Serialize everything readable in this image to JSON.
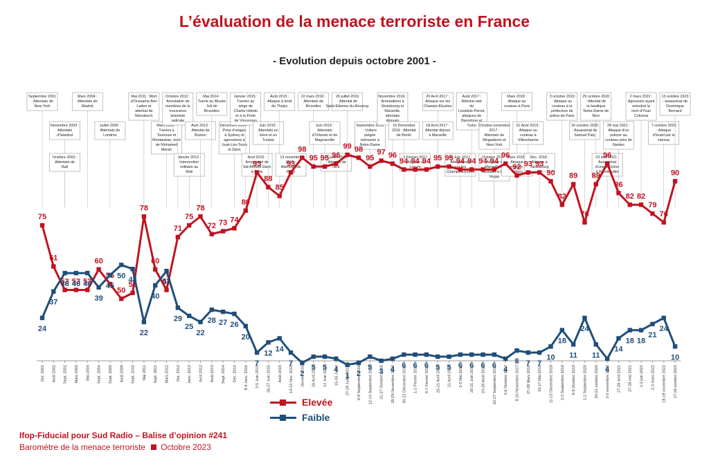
{
  "title": "L’évaluation de la menace terroriste en France",
  "subtitle": "- Evolution depuis octobre 2001 -",
  "footer": {
    "line1": "Ifop-Fiducial pour Sud Radio – Balise d’opinion #241",
    "line2a": "Baromètre de la menace terroriste",
    "line2b": "Octobre 2023"
  },
  "colors": {
    "elevee": "#c1121f",
    "faible": "#1f4e79"
  },
  "chart_data": {
    "type": "line",
    "categories": [
      "Oct. 2001",
      "Août 2002",
      "Sept. 2002",
      "Mars 2003",
      "Mai 2004",
      "Sept. 2004",
      "Sept. 2005",
      "Août 2008",
      "Sept. 2010",
      "Mai 2011",
      "Sept. 2011",
      "Mars 2012",
      "Oct. 2012",
      "Janv. 2013",
      "Avril 2013",
      "Août 2013",
      "Sept. 2014",
      "Déc. 2014",
      "8-9 Janv. 2015",
      "3-5 Juin 2015",
      "26-27 Juin 2015",
      "Août 2015",
      "14-15 Nov. 2015",
      "Janvier 2016",
      "18 Avril 2016",
      "14 Juin 2016",
      "15-16 Juillet",
      "27-29 Juillet 2016",
      "6-9 Septembre 2016",
      "12-14 Septembre 2016",
      "21-27 Octobre 2016",
      "28-29 Novembre 2016",
      "20-22 Décembre 2016",
      "1-2 Février 2017",
      "6-7 Février 2017",
      "20-21 Avril 2017",
      "21 Avril 2017",
      "2-5 Mai 2017",
      "20-21 Juin 2017",
      "24-28 Août 2017",
      "20-27 Septembre 2017",
      "3-6 Octobre 2017",
      "9-10 Novembre 2017",
      "27-28 Mars 2018",
      "16-17 Mai 2018",
      "11-13 Décembre 2018",
      "2-3 Septembre 2019",
      "8-9 Octobre 2019",
      "1-2 Septembre 2020",
      "20-21 octobre 2020",
      "3-5 novembre 2020",
      "27-28 avril 2021",
      "27-28 mai 2021",
      "1-2 juin 2021",
      "2-3 mars 2022",
      "18-19 novembre 2022",
      "17-18 octobre 2023"
    ],
    "series": [
      {
        "name": "Elevée",
        "values": [
          75,
          61,
          53,
          53,
          53,
          60,
          55,
          50,
          52,
          78,
          60,
          53,
          71,
          75,
          78,
          72,
          73,
          74,
          80,
          93,
          88,
          85,
          93,
          98,
          95,
          95,
          96,
          99,
          98,
          95,
          97,
          96,
          94,
          94,
          94,
          95,
          95,
          94,
          94,
          94,
          94,
          96,
          92,
          93,
          93,
          90,
          82,
          89,
          76,
          89,
          96,
          86,
          82,
          82,
          79,
          76,
          90
        ]
      },
      {
        "name": "Faible",
        "values": [
          24,
          37,
          46,
          46,
          46,
          39,
          45,
          50,
          48,
          22,
          40,
          47,
          29,
          25,
          22,
          28,
          27,
          26,
          20,
          7,
          12,
          14,
          7,
          2,
          5,
          5,
          4,
          1,
          2,
          5,
          3,
          4,
          6,
          6,
          6,
          5,
          5,
          6,
          6,
          6,
          6,
          4,
          8,
          7,
          7,
          10,
          18,
          11,
          24,
          11,
          4,
          14,
          18,
          18,
          21,
          24,
          10
        ]
      }
    ],
    "xlabel": "",
    "ylabel": "",
    "ylim": [
      0,
      100
    ],
    "legend": [
      "Elevée",
      "Faible"
    ],
    "annotations": [
      {
        "text": "Septembre 2001 : Attentats de New-York",
        "at": 0
      },
      {
        "text": "Novembre 2003 : Attentats d'Istanbul",
        "at": 2
      },
      {
        "text": "Octobre 2002 : Attentats de Bali",
        "at": 2
      },
      {
        "text": "Mars 2004 : Attentats de Madrid",
        "at": 4
      },
      {
        "text": "Juillet 2005 : Attentats de Londres",
        "at": 6
      },
      {
        "text": "Mai 2011 : Mort d'Oussama Ben Laden et attentat de Marrakech",
        "at": 9
      },
      {
        "text": "Mars 2012 : Tueries à Toulouse et Montauban, mort de Mohamed Merah",
        "at": 11
      },
      {
        "text": "Octobre 2012 : Arrestation de membres de la mouvance islamiste radicale",
        "at": 12
      },
      {
        "text": "Janvier 2013 : Intervention militaire au Mali",
        "at": 13
      },
      {
        "text": "Avril 2013 : Attentat de Boston",
        "at": 14
      },
      {
        "text": "Mai 2014 : Tuerie au Musée Juif de Bruxelles",
        "at": 15
      },
      {
        "text": "Décembre 2014 : Prise d'otages à Sydney et agressions à Joué-Lès-Tours et Dijon",
        "at": 17
      },
      {
        "text": "Janvier 2015 : Tueries au siège de Charlie Hebdo et à la Porte de Vincennes",
        "at": 18
      },
      {
        "text": "Avril 2015 : Arrestation de Sid Ahmed Glam à Paris",
        "at": 19
      },
      {
        "text": "Juin 2015 : Attentats en Isère et en Tunisie",
        "at": 20
      },
      {
        "text": "Août 2015 : Attaque à bord du Thalys",
        "at": 21
      },
      {
        "text": "13 novembre 2015 : Attentats de Paris",
        "at": 22
      },
      {
        "text": "22 mars 2016 : Attentats de Bruxelles",
        "at": 24
      },
      {
        "text": "Juin 2016 : Attentats d'Orlando et de Magnanville",
        "at": 25
      },
      {
        "text": "14 juillet 2016 : Attentat de Nice",
        "at": 26
      },
      {
        "text": "26 juillet 2016 : Attentat de Saint-Etienne-du-Rouvray",
        "at": 27
      },
      {
        "text": "Septembre 2016 : Voiture piégée retrouvée à Notre-Dame",
        "at": 29
      },
      {
        "text": "Novembre 2016 : Arrestations à Strasbourg et Marseille, attentats déjoués",
        "at": 31
      },
      {
        "text": "19 Décembre 2016 : Attentat de Berlin",
        "at": 32
      },
      {
        "text": "3 Février 2017 : Attaque au Louvre",
        "at": 33
      },
      {
        "text": "20 Avril 2017 : Attaque sur les Champs-Elysées",
        "at": 35
      },
      {
        "text": "18 Avril 2017 : Attentat déjoué à Marseille",
        "at": 35
      },
      {
        "text": "19 Juin 2017 : Attentat raté sur les Champs-Elysées",
        "at": 37
      },
      {
        "text": "Août 2017 : Attentat raté de Levallois-Perret, attaques de Barcelone et Turku",
        "at": 38
      },
      {
        "text": "Octobre-novembre 2017 : Attentats de Mogadiscio et New-York",
        "at": 40
      },
      {
        "text": "Octobre 2017 : Attaque à Marseille et fusillade à Las Vegas",
        "at": 40
      },
      {
        "text": "Mars 2018 : Attaque au couteau à Paris",
        "at": 42
      },
      {
        "text": "Mars 2018 : Attaque terroriste à Trèbes",
        "at": 42
      },
      {
        "text": "31 Août 2019 : Attaque au couteau à Villeurbanne",
        "at": 43
      },
      {
        "text": "Déc. 2018 : Attaque à Strasbourg",
        "at": 44
      },
      {
        "text": "3 octobre 2019 : Attaque au couteau à la préfecture de police de Paris",
        "at": 46
      },
      {
        "text": "16 octobre 2020 : Assassinat de Samuel Paty",
        "at": 48
      },
      {
        "text": "29 octobre 2020 : Attentat de la basilique Notre-Dame de Nice",
        "at": 49
      },
      {
        "text": "23 avril 2021 : Assassinat d'une policière à Rambouillet",
        "at": 50
      },
      {
        "text": "28 mai 2021 : Attaque d'un policier au couteau près de Nantes",
        "at": 51
      },
      {
        "text": "2 mars 2022 : Agression ayant entraîné la mort d'Yvan Colonna",
        "at": 53
      },
      {
        "text": "7 octobre 2023 : Attaque d'Israël par le Hamas",
        "at": 55
      },
      {
        "text": "13 octobre 2023 : assassinat de Dominique Bernard",
        "at": 56
      }
    ]
  }
}
